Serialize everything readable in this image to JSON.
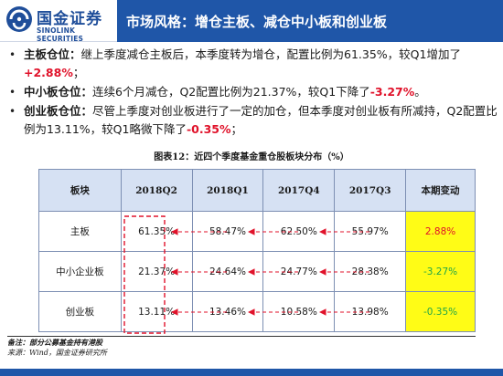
{
  "logo": {
    "cn": "国金证券",
    "en": "SINOLINK SECURITIES",
    "mark_color": "#1f4e9a"
  },
  "header": {
    "title": "市场风格：增仓主板、减仓中小板和创业板",
    "bar_color": "#1f56a8"
  },
  "bullets": [
    {
      "label": "主板仓位：",
      "text": "继上季度减仓主板后，本季度转为增仓，配置比例为61.35%，较Q1增加了",
      "highlight": "+2.88%",
      "tail": "；"
    },
    {
      "label": "中小板仓位：",
      "text": "连续6个月减仓，Q2配置比例为21.37%，较Q1下降了",
      "highlight": "-3.27%",
      "tail": "。"
    },
    {
      "label": "创业板仓位：",
      "text": "尽管上季度对创业板进行了一定的加仓，但本季度对创业板有所减持，Q2配置比例为13.11%，较Q1略微下降了",
      "highlight": "-0.35%",
      "tail": "；"
    }
  ],
  "table": {
    "title": "图表12：近四个季度基金重仓股板块分布（%）",
    "headers": [
      "板块",
      "2018Q2",
      "2018Q1",
      "2017Q4",
      "2017Q3",
      "本期变动"
    ],
    "rows": [
      {
        "label": "主板",
        "values": [
          "61.35%",
          "58.47%",
          "62.50%",
          "55.97%"
        ],
        "change": "2.88%",
        "change_color": "red"
      },
      {
        "label": "中小企业板",
        "values": [
          "21.37%",
          "24.64%",
          "24.77%",
          "28.38%"
        ],
        "change": "-3.27%",
        "change_color": "green"
      },
      {
        "label": "创业板",
        "values": [
          "13.11%",
          "13.46%",
          "10.58%",
          "13.98%"
        ],
        "change": "-0.35%",
        "change_color": "green"
      }
    ]
  },
  "notes": {
    "line1": "备注：部分公募基金持有港股",
    "line2": "来源：Wind，国金证券研究所"
  },
  "colors": {
    "accent_red": "#e0122a",
    "accent_green": "#20a648",
    "highlight_yellow": "#fffc16",
    "header_blue": "#d6e1f3"
  }
}
